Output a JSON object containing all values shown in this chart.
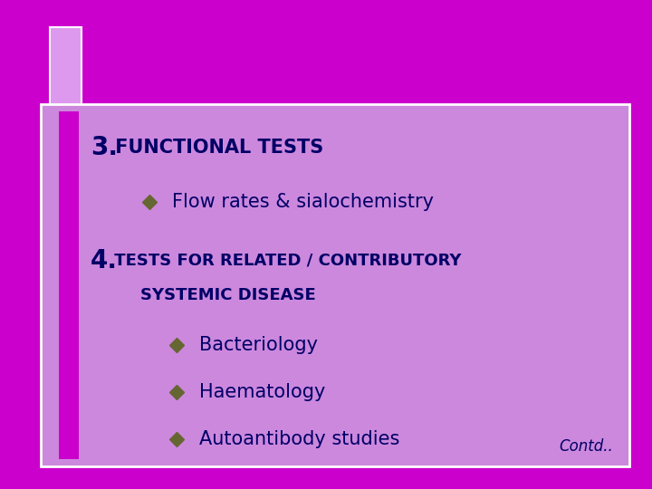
{
  "background_color": "#CC00CC",
  "content_box_color": "#CC88DD",
  "border_color": "#FFFFFF",
  "left_bar_color": "#CC00CC",
  "top_accent_color": "#DD99EE",
  "text_color_heading": "#000066",
  "text_color_body": "#000066",
  "bullet_color": "#666633",
  "contd_color": "#000066",
  "heading1_num": "3.",
  "heading1_text": " FUNCTIONAL TESTS",
  "bullet1": "Flow rates & sialochemistry",
  "heading2_num": "4.",
  "heading2_text": " TESTS FOR RELATED / CONTRIBUTORY",
  "heading2_line2": "    SYSTEMIC DISEASE",
  "bullet2": "Bacteriology",
  "bullet3": "Haematology",
  "bullet4": "Autoantibody studies",
  "contd": "Contd.."
}
